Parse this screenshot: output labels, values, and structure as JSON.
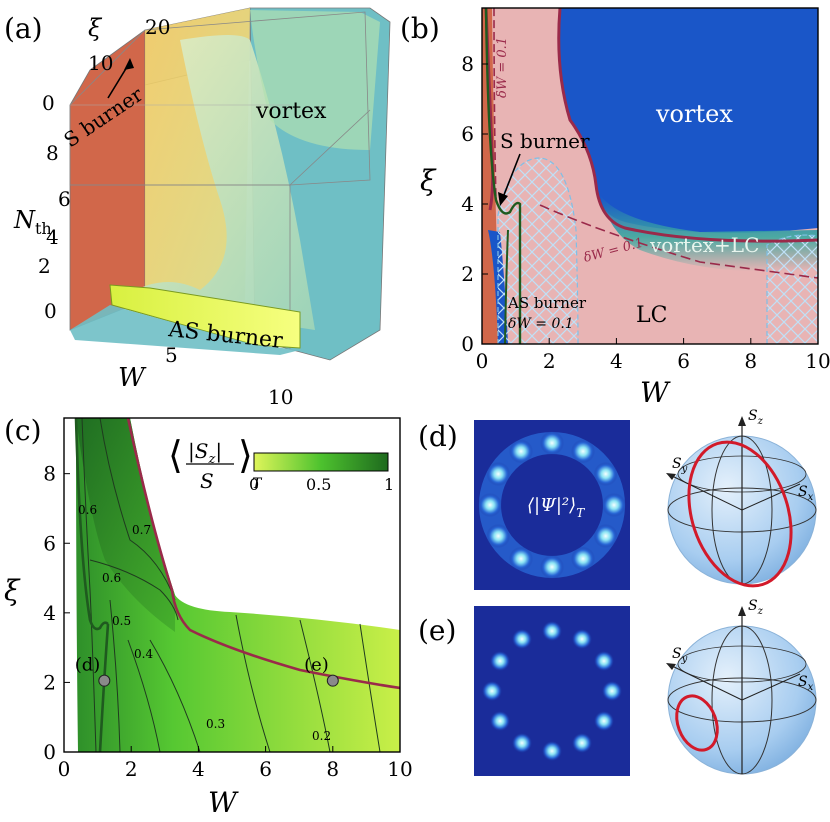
{
  "panels": {
    "a": {
      "label": "(a)",
      "axes": {
        "xi_label": "ξ",
        "nth_label": "N",
        "nth_sub": "th",
        "w_label": "W",
        "xi_ticks": [
          "20",
          "10",
          "0"
        ],
        "nth_ticks": [
          "8",
          "6",
          "4",
          "2",
          "0"
        ],
        "w_ticks": [
          "5",
          "10"
        ]
      },
      "regions": {
        "s_burner": "S burner",
        "vortex": "vortex",
        "as_burner": "AS burner"
      }
    },
    "b": {
      "label": "(b)",
      "xlabel": "W",
      "ylabel": "ξ",
      "xticks": [
        "0",
        "2",
        "4",
        "6",
        "8",
        "10"
      ],
      "yticks": [
        "0",
        "2",
        "4",
        "6",
        "8"
      ],
      "regions": {
        "vortex": "vortex",
        "vortex_lc": "vortex+LC",
        "lc": "LC",
        "s_burner": "S burner",
        "as_burner": "AS burner"
      },
      "annotations": {
        "dw_vertical": "δW = 0.1",
        "dw_diag": "δW = 0.1",
        "dw_as": "δW = 0.1"
      }
    },
    "c": {
      "label": "(c)",
      "xlabel": "W",
      "ylabel": "ξ",
      "xticks": [
        "0",
        "2",
        "4",
        "6",
        "8",
        "10"
      ],
      "yticks": [
        "0",
        "2",
        "4",
        "6",
        "8"
      ],
      "colorbar": {
        "ticks": [
          "0",
          "0.5",
          "1"
        ],
        "label_num": "|S",
        "label_sub": "z",
        "label_den": "S",
        "label_t": "T"
      },
      "contour_labels": [
        "0.6",
        "0.7",
        "0.6",
        "0.5",
        "0.4",
        "0.3",
        "0.2"
      ],
      "points": [
        {
          "name": "(d)",
          "W": 1.2,
          "xi": 2.05
        },
        {
          "name": "(e)",
          "W": 8.0,
          "xi": 2.05
        }
      ]
    },
    "d": {
      "label": "(d)",
      "density_label": "⟨|Ψ|²⟩",
      "density_sub": "T",
      "sphere_axes": {
        "sz": "S",
        "sz_sub": "z",
        "sy": "S",
        "sy_sub": "y",
        "sx": "S",
        "sx_sub": "x"
      }
    },
    "e": {
      "label": "(e)",
      "sphere_axes": {
        "sz": "S",
        "sz_sub": "z",
        "sy": "S",
        "sy_sub": "y",
        "sx": "S",
        "sx_sub": "x"
      }
    }
  },
  "colors": {
    "vortex_blue": "#1a56c8",
    "lc_pink": "#e8b4b4",
    "burnt_orange": "#d1674a",
    "maroon": "#9a2a4a",
    "dark_green": "#1f5a1f",
    "hatch": "#a9d4f0",
    "light_green": "#c8ec44",
    "deep_green": "#1e6a1e"
  }
}
